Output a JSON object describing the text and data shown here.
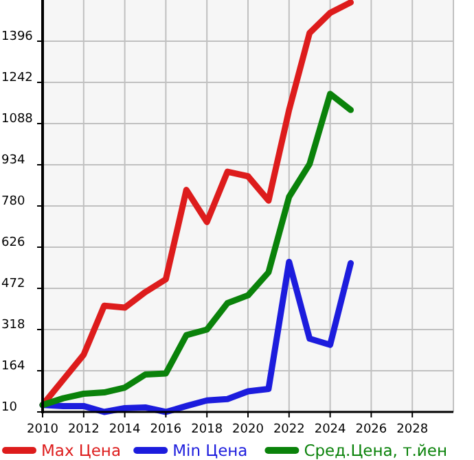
{
  "chart_data": {
    "type": "line",
    "x": [
      2010,
      2011,
      2012,
      2013,
      2014,
      2015,
      2016,
      2017,
      2018,
      2019,
      2020,
      2021,
      2022,
      2023,
      2024,
      2025
    ],
    "series": [
      {
        "name": "Max Цена",
        "color": "#dd1c1c",
        "values": [
          36,
          130,
          224,
          407,
          400,
          458,
          506,
          840,
          720,
          908,
          891,
          800,
          1139,
          1427,
          1502,
          1541
        ]
      },
      {
        "name": "Min Цена",
        "color": "#1c1cdd",
        "values": [
          36,
          32,
          32,
          10,
          24,
          27,
          10,
          32,
          53,
          58,
          87,
          96,
          571,
          284,
          261,
          566
        ]
      },
      {
        "name": "Сред.Цена, т.йен",
        "color": "#0a820a",
        "values": [
          36,
          61,
          78,
          83,
          101,
          150,
          154,
          297,
          318,
          417,
          446,
          532,
          814,
          937,
          1199,
          1139
        ]
      }
    ],
    "xlim": [
      2010,
      2030
    ],
    "xticks": [
      2010,
      2012,
      2014,
      2016,
      2018,
      2020,
      2022,
      2024,
      2026,
      2028
    ],
    "ylim": [
      10,
      1550
    ],
    "yticks": [
      10,
      164,
      318,
      472,
      626,
      780,
      934,
      1088,
      1242,
      1396
    ],
    "grid": true,
    "legend": "bottom",
    "marker": "none",
    "line_style": "solid"
  }
}
